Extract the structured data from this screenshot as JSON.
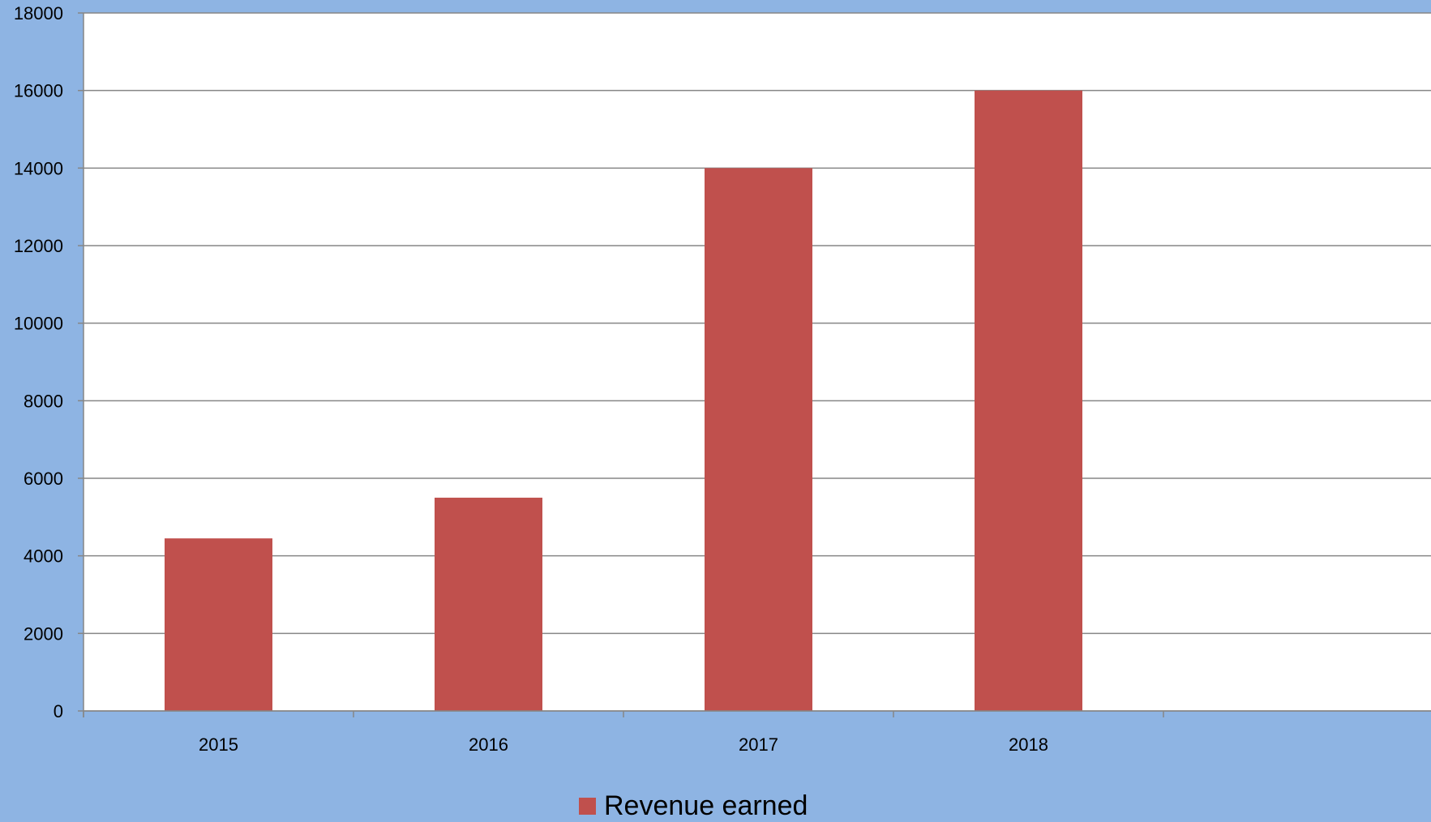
{
  "colors": {
    "background": "#8EB4E3",
    "plot_area": "#FFFFFF",
    "series": "#C0504D",
    "gridline": "#868686",
    "axis": "#868686"
  },
  "chart_data": {
    "type": "bar",
    "categories": [
      "2015",
      "2016",
      "2017",
      "2018",
      ""
    ],
    "series": [
      {
        "name": "Revenue earned",
        "values": [
          4450,
          5500,
          14000,
          16000,
          null
        ]
      }
    ],
    "ylim": [
      0,
      18000
    ],
    "y_ticks": [
      0,
      2000,
      4000,
      6000,
      8000,
      10000,
      12000,
      14000,
      16000,
      18000
    ],
    "title": "",
    "xlabel": "",
    "ylabel": "",
    "grid": true,
    "legend_position": "bottom"
  }
}
